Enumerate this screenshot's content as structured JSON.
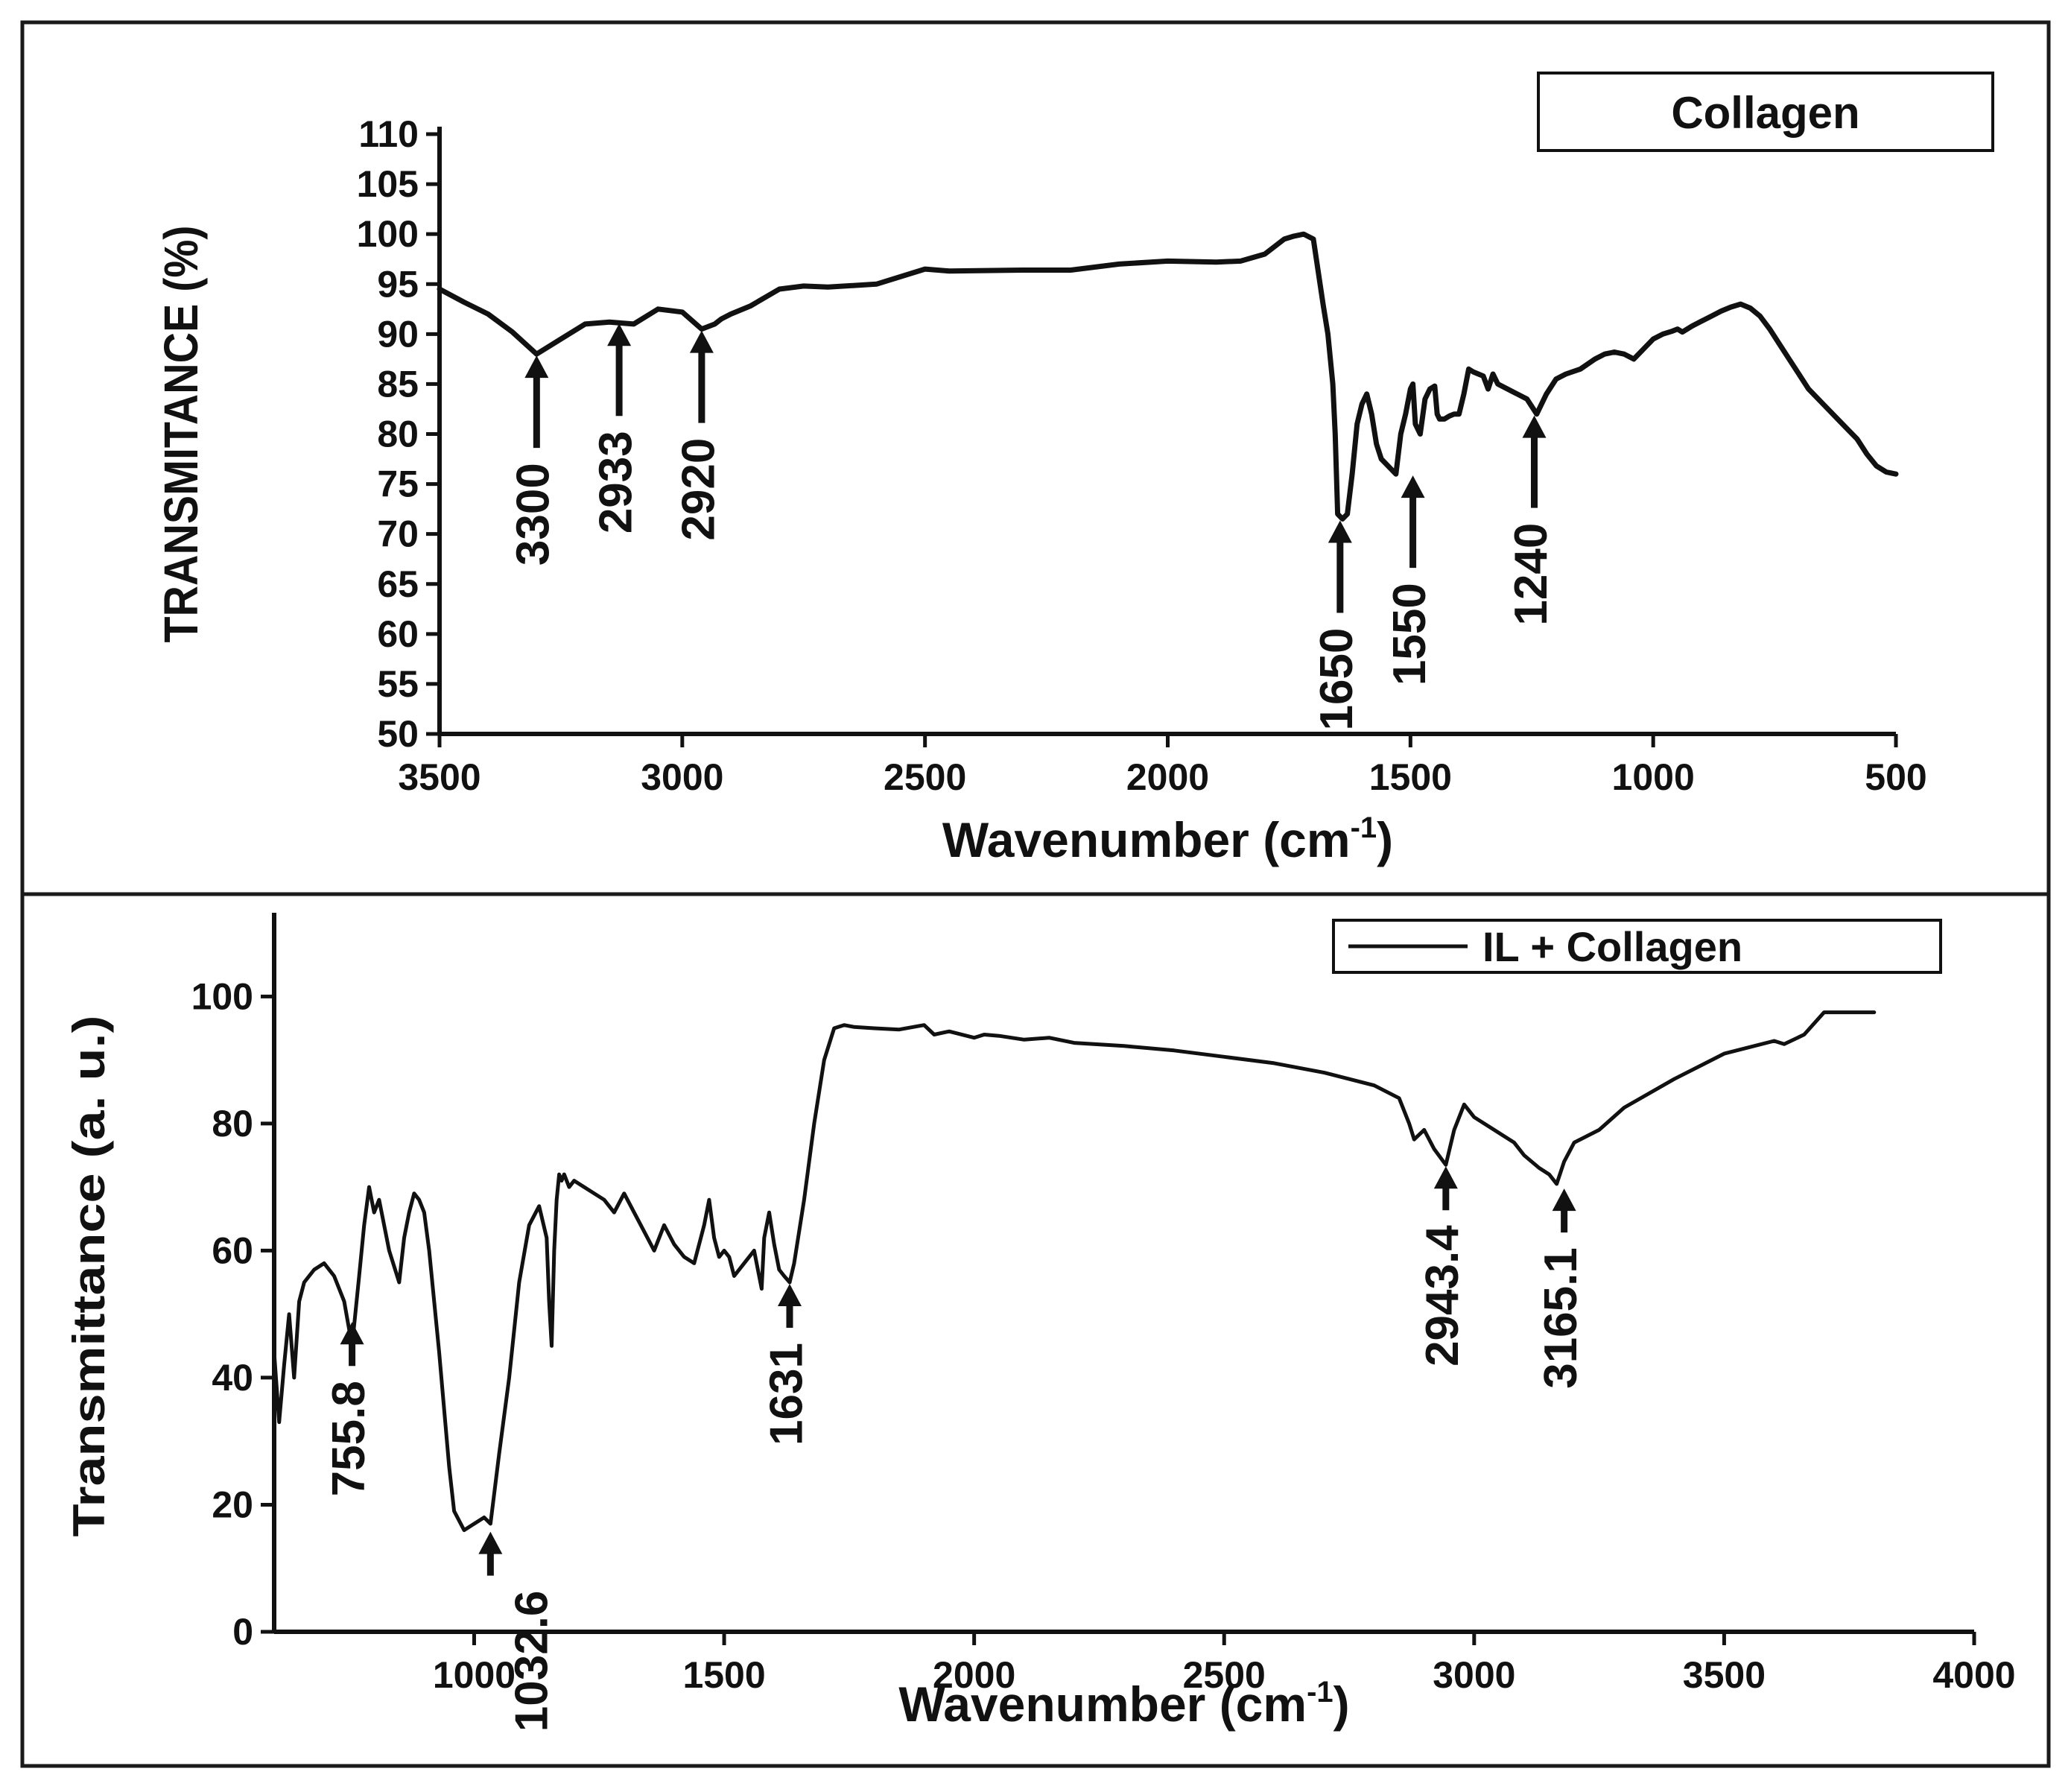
{
  "chart_data": [
    {
      "id": "top",
      "type": "line",
      "legend": "Collagen",
      "legend_position": "top-right",
      "xlabel": "Wavenumber",
      "xlabel_unit_base": "(cm",
      "xlabel_unit_sup": "-1",
      "xlabel_unit_close": ")",
      "ylabel": "TRANSMITANCE (%)",
      "xlim": [
        3500,
        500
      ],
      "ylim": [
        50,
        110
      ],
      "xticks": [
        3500,
        3000,
        2500,
        2000,
        1500,
        1000,
        500
      ],
      "yticks": [
        50,
        55,
        60,
        65,
        70,
        75,
        80,
        85,
        90,
        95,
        100,
        105,
        110
      ],
      "series": [
        {
          "name": "Collagen",
          "x": [
            3500,
            3450,
            3400,
            3350,
            3300,
            3250,
            3200,
            3150,
            3100,
            3050,
            3000,
            2960,
            2933,
            2920,
            2900,
            2860,
            2800,
            2750,
            2700,
            2600,
            2500,
            2450,
            2300,
            2200,
            2100,
            2000,
            1900,
            1850,
            1800,
            1760,
            1740,
            1720,
            1700,
            1680,
            1670,
            1660,
            1655,
            1650,
            1640,
            1630,
            1620,
            1610,
            1600,
            1590,
            1580,
            1570,
            1560,
            1550,
            1540,
            1530,
            1520,
            1510,
            1500,
            1495,
            1490,
            1480,
            1470,
            1460,
            1450,
            1445,
            1440,
            1430,
            1420,
            1410,
            1400,
            1390,
            1380,
            1370,
            1360,
            1350,
            1340,
            1330,
            1320,
            1300,
            1280,
            1260,
            1240,
            1220,
            1200,
            1180,
            1150,
            1120,
            1100,
            1080,
            1060,
            1040,
            1020,
            1000,
            980,
            960,
            950,
            940,
            920,
            900,
            880,
            860,
            840,
            820,
            800,
            780,
            760,
            740,
            720,
            700,
            680,
            660,
            640,
            620,
            600,
            580,
            560,
            540,
            520,
            500
          ],
          "y": [
            94.5,
            93.2,
            92.0,
            90.2,
            88.0,
            89.5,
            91.0,
            91.2,
            91.0,
            92.5,
            92.2,
            90.5,
            91.0,
            91.5,
            92.0,
            92.8,
            94.5,
            94.8,
            94.7,
            95.0,
            96.5,
            96.3,
            96.4,
            96.4,
            97.0,
            97.3,
            97.2,
            97.3,
            98.0,
            99.5,
            99.8,
            100.0,
            99.5,
            93.0,
            90.0,
            85.0,
            80.0,
            72.0,
            71.5,
            72.0,
            76.0,
            81.0,
            83.0,
            84.0,
            82.0,
            79.0,
            77.5,
            77.0,
            76.5,
            76.0,
            80.0,
            82.0,
            84.5,
            85.0,
            81.0,
            80.0,
            83.5,
            84.5,
            84.8,
            82.0,
            81.5,
            81.5,
            81.8,
            82.0,
            82.0,
            84.0,
            86.5,
            86.2,
            86.0,
            85.8,
            84.5,
            86.0,
            85.0,
            84.5,
            84.0,
            83.5,
            82.0,
            84.0,
            85.5,
            86.0,
            86.5,
            87.5,
            88.0,
            88.2,
            88.0,
            87.5,
            88.5,
            89.5,
            90.0,
            90.3,
            90.5,
            90.2,
            90.8,
            91.3,
            91.8,
            92.3,
            92.7,
            93.0,
            92.6,
            91.8,
            90.5,
            89.0,
            87.5,
            86.0,
            84.5,
            83.5,
            82.5,
            81.5,
            80.5,
            79.5,
            78.0,
            76.8,
            76.2,
            76.0
          ]
        }
      ],
      "annotations": [
        {
          "label": "3300",
          "x": 3300,
          "y": 88.0,
          "placement": "below"
        },
        {
          "label": "2933",
          "x": 3130,
          "y": 91.2,
          "placement": "below"
        },
        {
          "label": "2920",
          "x": 2960,
          "y": 90.5,
          "placement": "below"
        },
        {
          "label": "1650",
          "x": 1645,
          "y": 71.5,
          "placement": "below"
        },
        {
          "label": "1550",
          "x": 1495,
          "y": 76.0,
          "placement": "below"
        },
        {
          "label": "1240",
          "x": 1245,
          "y": 82.0,
          "placement": "below"
        }
      ]
    },
    {
      "id": "bottom",
      "type": "line",
      "legend": "IL + Collagen",
      "legend_position": "top-right",
      "xlabel": "Wavenumber",
      "xlabel_unit_base": "(cm",
      "xlabel_unit_sup": "-1",
      "xlabel_unit_close": ")",
      "ylabel": "Transmittance (a. u.)",
      "xlim": [
        600,
        4000
      ],
      "ylim": [
        0,
        112
      ],
      "xticks": [
        1000,
        1500,
        2000,
        2500,
        3000,
        3500,
        4000
      ],
      "yticks": [
        0,
        20,
        40,
        60,
        80,
        100
      ],
      "series": [
        {
          "name": "IL + Collagen",
          "x": [
            600,
            610,
            620,
            630,
            640,
            650,
            660,
            680,
            700,
            720,
            740,
            755.8,
            770,
            780,
            790,
            800,
            810,
            830,
            850,
            860,
            870,
            880,
            890,
            900,
            910,
            920,
            930,
            940,
            950,
            960,
            980,
            1000,
            1020,
            1032.6,
            1050,
            1070,
            1090,
            1110,
            1130,
            1145,
            1150,
            1155,
            1160,
            1165,
            1170,
            1175,
            1180,
            1190,
            1200,
            1220,
            1240,
            1260,
            1280,
            1300,
            1320,
            1340,
            1360,
            1380,
            1400,
            1420,
            1440,
            1460,
            1470,
            1480,
            1490,
            1500,
            1510,
            1520,
            1540,
            1560,
            1575,
            1580,
            1590,
            1600,
            1610,
            1620,
            1631,
            1640,
            1660,
            1680,
            1700,
            1720,
            1740,
            1760,
            1800,
            1850,
            1900,
            1920,
            1950,
            2000,
            2020,
            2050,
            2100,
            2150,
            2200,
            2300,
            2400,
            2500,
            2600,
            2700,
            2800,
            2850,
            2870,
            2880,
            2900,
            2920,
            2943.4,
            2960,
            2980,
            3000,
            3040,
            3080,
            3100,
            3130,
            3150,
            3165.1,
            3180,
            3200,
            3250,
            3300,
            3400,
            3500,
            3600,
            3620,
            3660,
            3700,
            3800
          ],
          "y": [
            44,
            33,
            42,
            50,
            40,
            52,
            55,
            57,
            58,
            56,
            52,
            45,
            56,
            64,
            70,
            66,
            68,
            60,
            55,
            62,
            66,
            69,
            68,
            66,
            60,
            52,
            44,
            35,
            26,
            19,
            16,
            17,
            18,
            17,
            28,
            40,
            55,
            64,
            67,
            62,
            52,
            45,
            60,
            68,
            72,
            71,
            72,
            70,
            71,
            70,
            69,
            68,
            66,
            69,
            66,
            63,
            60,
            64,
            61,
            59,
            58,
            64,
            68,
            62,
            59,
            60,
            59,
            56,
            58,
            60,
            54,
            62,
            66,
            61,
            57,
            56,
            55,
            58,
            68,
            80,
            90,
            95,
            95.5,
            95.2,
            95,
            94.8,
            95.5,
            94,
            94.5,
            93.5,
            94,
            93.8,
            93.2,
            93.5,
            92.7,
            92.2,
            91.5,
            90.5,
            89.5,
            88.0,
            86.0,
            84.0,
            80.0,
            77.5,
            79.0,
            76.0,
            73.5,
            79.0,
            83.0,
            81.0,
            79.0,
            77.0,
            75.0,
            73.0,
            72.0,
            70.5,
            74.0,
            77.0,
            79.0,
            82.5,
            87.0,
            91.0,
            93.0,
            92.5,
            94.0,
            97.5,
            97.5
          ]
        }
      ],
      "annotations": [
        {
          "label": "755.8",
          "x": 755.8,
          "y": 49,
          "placement": "below"
        },
        {
          "label": "1032.6",
          "x": 1032.6,
          "y": 16,
          "placement": "below-right"
        },
        {
          "label": "1631",
          "x": 1631,
          "y": 55,
          "placement": "below"
        },
        {
          "label": "2943.4",
          "x": 2943.4,
          "y": 73.5,
          "placement": "below"
        },
        {
          "label": "3165.1",
          "x": 3180,
          "y": 70,
          "placement": "below"
        }
      ]
    }
  ]
}
